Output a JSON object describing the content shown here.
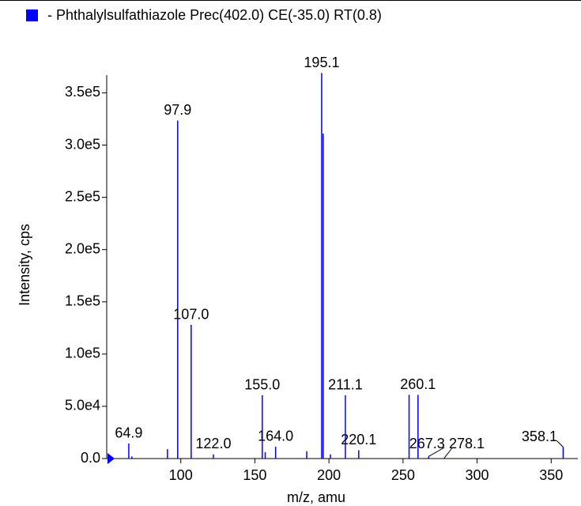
{
  "chart_data": {
    "type": "spectrum",
    "x_label": "m/z, amu",
    "y_label": "Intensity, cps",
    "xlim": [
      50,
      368
    ],
    "ylim": [
      0,
      367000
    ],
    "xticks": [
      100,
      150,
      200,
      250,
      300,
      350
    ],
    "yticks": [
      {
        "value": 0,
        "label": "0.0"
      },
      {
        "value": 50000,
        "label": "5.0e4"
      },
      {
        "value": 100000,
        "label": "1.0e5"
      },
      {
        "value": 150000,
        "label": "1.5e5"
      },
      {
        "value": 200000,
        "label": "2.0e5"
      },
      {
        "value": 250000,
        "label": "2.5e5"
      },
      {
        "value": 300000,
        "label": "3.0e5"
      },
      {
        "value": 350000,
        "label": "3.5e5"
      }
    ],
    "series": [
      {
        "name": "- Phthalylsulfathiazole Prec(402.0) CE(-35.0) RT(0.8)",
        "color": "#0000ff",
        "x": [
          64.9,
          67,
          91,
          97.9,
          107.0,
          122.0,
          155.0,
          157,
          164.0,
          185,
          195.1,
          196.1,
          201,
          211.1,
          220.1,
          254.1,
          260.1,
          267.3,
          278.1,
          358.1
        ],
        "values": [
          14400,
          2000,
          9000,
          323500,
          128000,
          4000,
          60600,
          6000,
          11400,
          7000,
          369000,
          311000,
          4000,
          60600,
          8000,
          61000,
          61000,
          2000,
          1000,
          11000
        ],
        "point_labels": [
          "64.9",
          null,
          null,
          "97.9",
          "107.0",
          "122.0",
          "155.0",
          null,
          "164.0",
          null,
          "195.1",
          null,
          null,
          "211.1",
          "220.1",
          null,
          "260.1",
          "267.3",
          "278.1",
          "358.1"
        ]
      }
    ]
  }
}
